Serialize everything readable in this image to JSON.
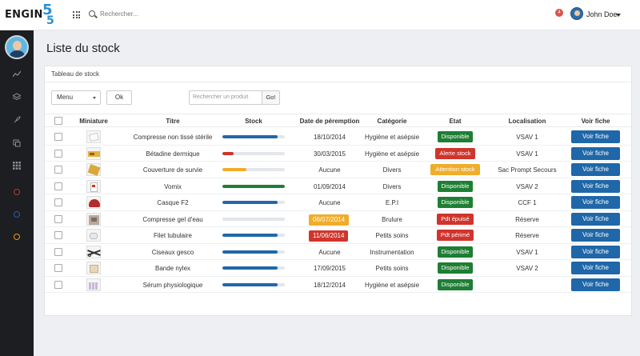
{
  "app": {
    "logo_text": "ENGIN",
    "logo_num_top": "5",
    "logo_num_bottom": "5",
    "search_placeholder": "Rechercher...",
    "notification_count": "4",
    "user_name": "John Doe"
  },
  "page": {
    "title": "Liste du stock",
    "panel_title": "Tableau de stock",
    "menu_label": "Menu",
    "ok_label": "Ok",
    "search_product_placeholder": "Rechercher un produit",
    "go_label": "Go!"
  },
  "table": {
    "headers": [
      "Miniature",
      "Titre",
      "Stock",
      "Date de péremption",
      "Catégorie",
      "Etat",
      "Localisation",
      "Voir fiche"
    ],
    "button_label": "Voir fiche",
    "rows": [
      {
        "title": "Compresse non tissé stérile",
        "stock": 0.88,
        "stock_color": "#2169a8",
        "date": "18/10/2014",
        "date_status": "",
        "category": "Hygiène et asépsie",
        "state": "Disponible",
        "state_color": "#1e7e34",
        "location": "VSAV 1",
        "thumb": "compress-icon"
      },
      {
        "title": "Bétadine dermique",
        "stock": 0.18,
        "stock_color": "#d0342c",
        "date": "30/03/2015",
        "date_status": "",
        "category": "Hygiène et asépsie",
        "state": "Alerte stock",
        "state_color": "#d0342c",
        "location": "VSAV 1",
        "thumb": "betadine-icon"
      },
      {
        "title": "Couverture de survie",
        "stock": 0.38,
        "stock_color": "#f0ad2a",
        "date": "Aucune",
        "date_status": "",
        "category": "Divers",
        "state": "Attention stock",
        "state_color": "#f0ad2a",
        "location": "Sac Prompt Secours",
        "thumb": "blanket-icon"
      },
      {
        "title": "Vomix",
        "stock": 1.0,
        "stock_color": "#1e7e34",
        "date": "01/09/2014",
        "date_status": "",
        "category": "Divers",
        "state": "Disponible",
        "state_color": "#1e7e34",
        "location": "VSAV 2",
        "thumb": "vomix-icon"
      },
      {
        "title": "Casque F2",
        "stock": 0.88,
        "stock_color": "#2169a8",
        "date": "Aucune",
        "date_status": "",
        "category": "E.P.I",
        "state": "Disponible",
        "state_color": "#1e7e34",
        "location": "CCF 1",
        "thumb": "helmet-icon"
      },
      {
        "title": "Compresse gel d'eau",
        "stock": 0.0,
        "stock_color": "#2169a8",
        "date": "06/07/2014",
        "date_status": "#f0ad2a",
        "category": "Brulure",
        "state": "Pdt épuisé",
        "state_color": "#d0342c",
        "location": "Réserve",
        "thumb": "gel-icon"
      },
      {
        "title": "Filet tubulaire",
        "stock": 0.88,
        "stock_color": "#2169a8",
        "date": "11/06/2014",
        "date_status": "#d0342c",
        "category": "Petits soins",
        "state": "Pdt périmé",
        "state_color": "#d0342c",
        "location": "Réserve",
        "thumb": "net-icon"
      },
      {
        "title": "Ciseaux gesco",
        "stock": 0.88,
        "stock_color": "#2169a8",
        "date": "Aucune",
        "date_status": "",
        "category": "Instrumentation",
        "state": "Disponible",
        "state_color": "#1e7e34",
        "location": "VSAV 1",
        "thumb": "scissors-icon"
      },
      {
        "title": "Bande nylex",
        "stock": 0.88,
        "stock_color": "#2169a8",
        "date": "17/09/2015",
        "date_status": "",
        "category": "Petits soins",
        "state": "Disponible",
        "state_color": "#1e7e34",
        "location": "VSAV 2",
        "thumb": "bandage-icon"
      },
      {
        "title": "Sérum physiologique",
        "stock": 0.88,
        "stock_color": "#2169a8",
        "date": "18/12/2014",
        "date_status": "",
        "category": "Hygiène et asépsie",
        "state": "Disponible",
        "state_color": "#1e7e34",
        "location": "",
        "thumb": "serum-icon"
      }
    ]
  },
  "sidebar": {
    "icons": [
      "chart-line-icon",
      "layers-icon",
      "rocket-icon",
      "copy-icon",
      "grid-icon"
    ],
    "rings": [
      {
        "name": "red-ring-icon",
        "color": "#c0392b"
      },
      {
        "name": "blue-ring-icon",
        "color": "#2f5aa8"
      },
      {
        "name": "orange-ring-icon",
        "color": "#e89a1c"
      }
    ]
  }
}
